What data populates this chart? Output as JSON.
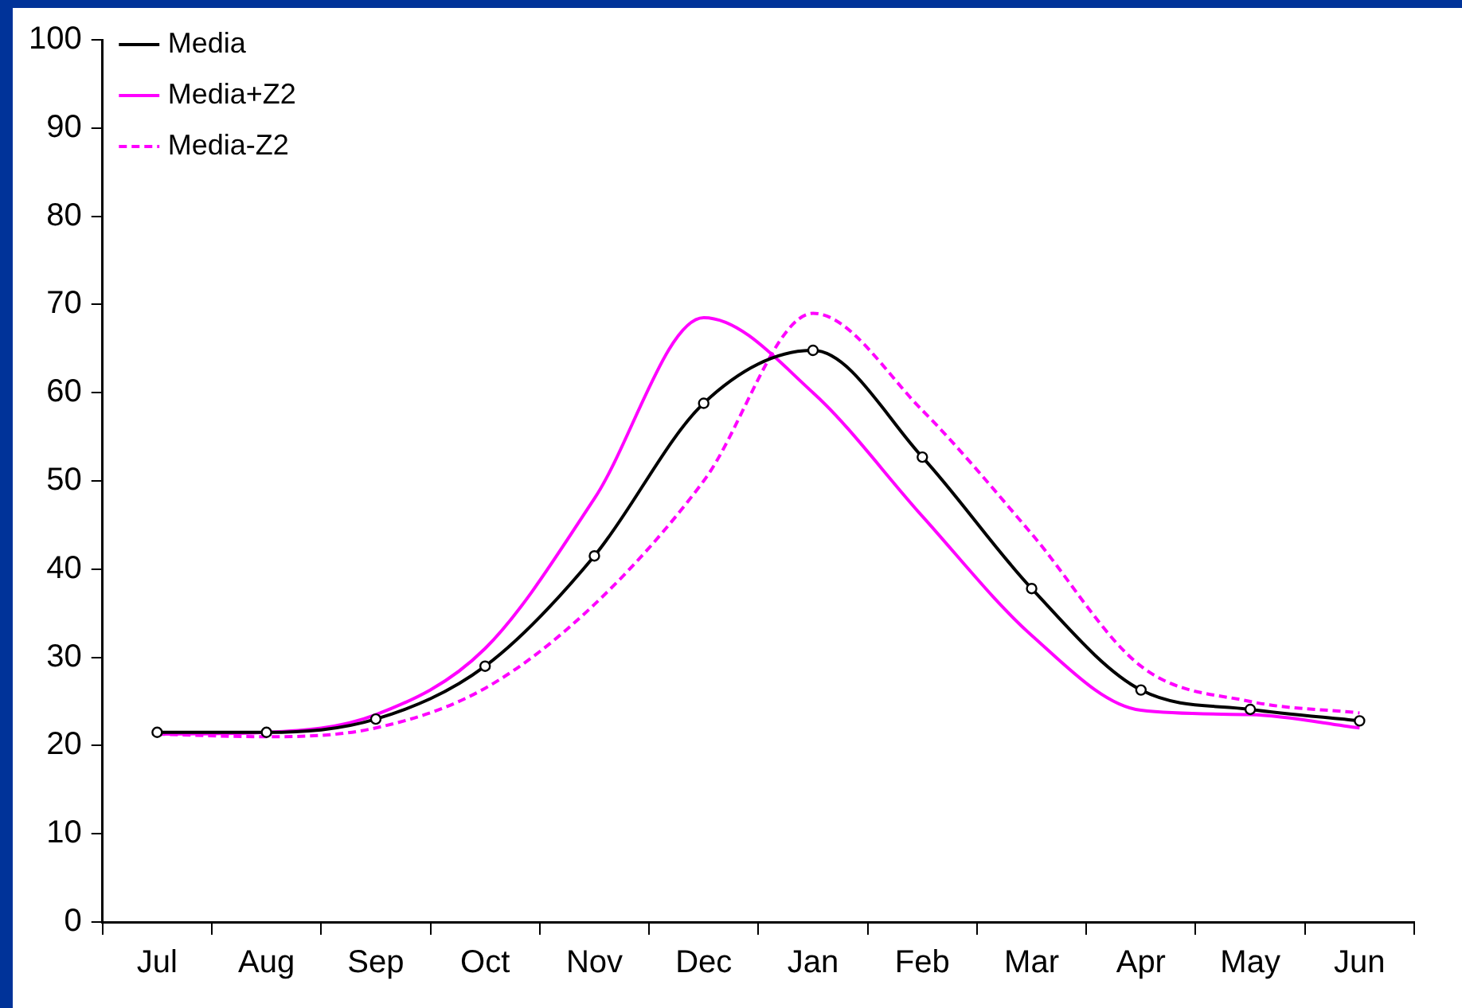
{
  "chart_data": {
    "type": "line",
    "categories": [
      "Jul",
      "Aug",
      "Sep",
      "Oct",
      "Nov",
      "Dec",
      "Jan",
      "Feb",
      "Mar",
      "Apr",
      "May",
      "Jun"
    ],
    "series": [
      {
        "name": "Media",
        "color": "#000000",
        "marker": "circle",
        "line_style": "solid",
        "values": [
          21.5,
          21.5,
          23,
          29,
          41.5,
          58.8,
          64.8,
          52.7,
          37.8,
          26.3,
          24.1,
          22.8
        ]
      },
      {
        "name": "Media+Z2",
        "color": "#ff00ff",
        "marker": "none",
        "line_style": "solid",
        "values": [
          21.3,
          21.5,
          23.5,
          31,
          48,
          68.5,
          60,
          46,
          32.5,
          24,
          23.5,
          22
        ]
      },
      {
        "name": "Media-Z2",
        "color": "#ff00ff",
        "marker": "none",
        "line_style": "dashed",
        "values": [
          21.3,
          21,
          22,
          26.5,
          36,
          50,
          69,
          58,
          44,
          29,
          25,
          23.7
        ]
      }
    ],
    "ylim": [
      0,
      100
    ],
    "yticks": [
      0,
      10,
      20,
      30,
      40,
      50,
      60,
      70,
      80,
      90,
      100
    ],
    "grid": false,
    "legend": "top left"
  }
}
